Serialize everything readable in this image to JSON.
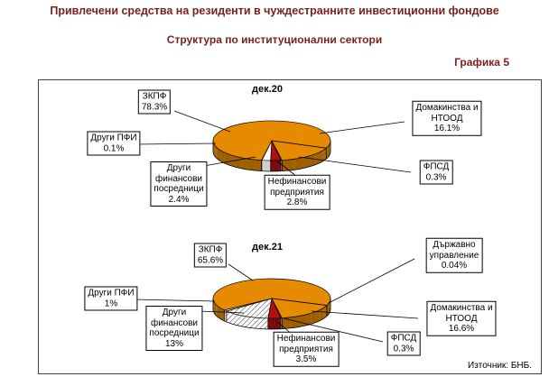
{
  "header": {
    "title": "Привлечени средства на резиденти в чуждестранните инвестиционни фондове",
    "subtitle": "Структура по институционални сектори",
    "figure_label": "Графика 5"
  },
  "footer": {
    "source": "Източник: БНБ."
  },
  "colors": {
    "heading": "#7A1F1F",
    "pie_orange": "#E68A00",
    "pie_orange_side": "#9E5E00",
    "pie_red": "#B51010",
    "pie_red_side": "#7A0A0A",
    "pie_white": "#FFFFFF"
  },
  "chart_data": [
    {
      "type": "pie",
      "title": "дек.20",
      "slices": [
        {
          "label": "ФПСД",
          "value": 0.3,
          "color": "#FFFFFF",
          "dark": "#CFCFCF"
        },
        {
          "label": "Нефинансови предприятия",
          "value": 2.8,
          "color": "#B51010",
          "dark": "#7A0A0A"
        },
        {
          "label": "Други финансови посредници",
          "value": 2.4,
          "color": "#FFFFFF",
          "dark": "#CFCFCF"
        },
        {
          "label": "Други ПФИ",
          "value": 0.1,
          "color": "#FFFFFF",
          "dark": "#CFCFCF"
        },
        {
          "label": "ЗКПФ",
          "value": 78.3,
          "color": "#E68A00",
          "dark": "#9E5E00"
        },
        {
          "label": "Домакинства и НТООД",
          "value": 16.1,
          "color": "#E68A00",
          "dark": "#9E5E00"
        }
      ],
      "callouts": {
        "zkpf": "ЗКПФ\n78.3%",
        "drugi_pfi": "Други ПФИ\n0.1%",
        "drugi_fin": "Други\nфинансови\nпосредници\n2.4%",
        "nefin": "Нефинансови\nпредприятия\n2.8%",
        "dom": "Домакинства и\nНТООД\n16.1%",
        "fpsd": "ФПСД\n0.3%"
      }
    },
    {
      "type": "pie",
      "title": "дек.21",
      "slices": [
        {
          "label": "ФПСД",
          "value": 0.3,
          "color": "#FFFFFF",
          "dark": "#CFCFCF"
        },
        {
          "label": "Нефинансови предприятия",
          "value": 3.5,
          "color": "#B51010",
          "dark": "#7A0A0A"
        },
        {
          "label": "Други финансови посредници",
          "value": 13,
          "color": "#FFFFFF",
          "hatch": true
        },
        {
          "label": "Други ПФИ",
          "value": 1,
          "color": "#FFFFFF",
          "dark": "#CFCFCF"
        },
        {
          "label": "ЗКПФ",
          "value": 65.6,
          "color": "#E68A00",
          "dark": "#9E5E00"
        },
        {
          "label": "Държавно управление",
          "value": 0.04,
          "color": "#FFFFFF",
          "dark": "#CFCFCF"
        },
        {
          "label": "Домакинства и НТООД",
          "value": 16.6,
          "color": "#E68A00",
          "dark": "#9E5E00"
        }
      ],
      "callouts": {
        "zkpf": "ЗКПФ\n65.6%",
        "darzh": "Държавно\nуправление\n0.04%",
        "drugi_pfi": "Други ПФИ\n1%",
        "drugi_fin": "Други\nфинансови\nпосредници\n13%",
        "nefin": "Нефинансови\nпредприятия\n3.5%",
        "fpsd": "ФПСД\n0.3%",
        "dom": "Домакинства и\nНТООД\n16.6%"
      }
    }
  ]
}
